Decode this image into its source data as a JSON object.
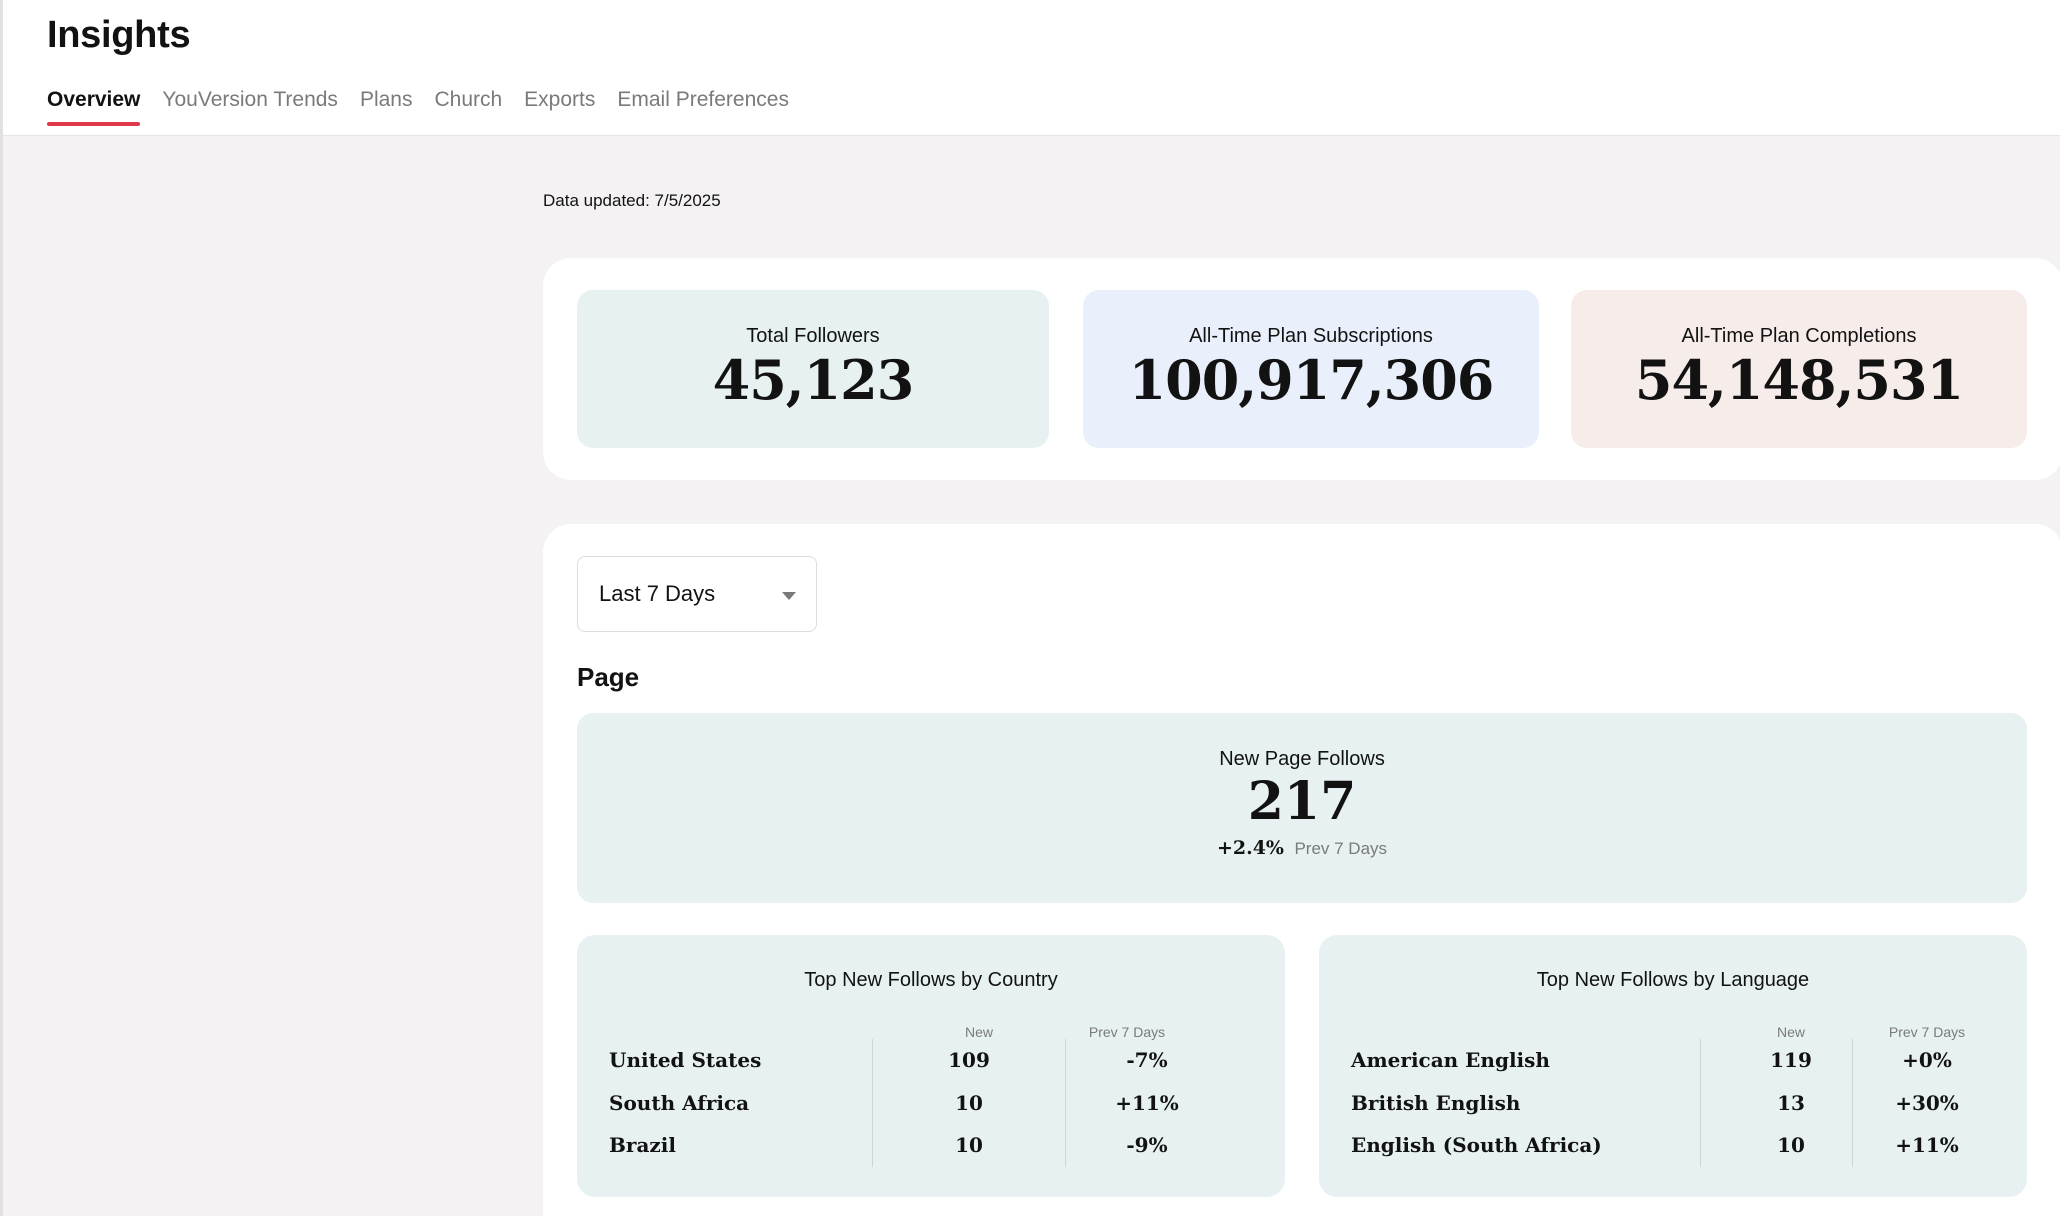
{
  "header": {
    "title": "Insights",
    "tabs": [
      {
        "label": "Overview",
        "active": true
      },
      {
        "label": "YouVersion Trends",
        "active": false
      },
      {
        "label": "Plans",
        "active": false
      },
      {
        "label": "Church",
        "active": false
      },
      {
        "label": "Exports",
        "active": false
      },
      {
        "label": "Email Preferences",
        "active": false
      }
    ]
  },
  "data_updated": "Data updated: 7/5/2025",
  "summary": {
    "total_followers": {
      "label": "Total Followers",
      "value": "45,123"
    },
    "plan_subscriptions": {
      "label": "All-Time Plan Subscriptions",
      "value": "100,917,306"
    },
    "plan_completions": {
      "label": "All-Time Plan Completions",
      "value": "54,148,531"
    }
  },
  "filters": {
    "range": {
      "selected": "Last 7 Days"
    }
  },
  "page_section": {
    "title": "Page",
    "new_page_follows": {
      "label": "New Page Follows",
      "value": "217",
      "change": "+2.4%",
      "change_label": "Prev 7 Days"
    },
    "top_country": {
      "title": "Top New Follows by Country",
      "col_new": "New",
      "col_prev": "Prev 7 Days",
      "rows": [
        {
          "name": "United States",
          "new": "109",
          "prev": "-7%"
        },
        {
          "name": "South Africa",
          "new": "10",
          "prev": "+11%"
        },
        {
          "name": "Brazil",
          "new": "10",
          "prev": "-9%"
        }
      ]
    },
    "top_language": {
      "title": "Top New Follows by Language",
      "col_new": "New",
      "col_prev": "Prev 7 Days",
      "rows": [
        {
          "name": "American English",
          "new": "119",
          "prev": "+0%"
        },
        {
          "name": "British English",
          "new": "13",
          "prev": "+30%"
        },
        {
          "name": "English (South Africa)",
          "new": "10",
          "prev": "+11%"
        }
      ]
    }
  },
  "colors": {
    "accent": "#e0394a",
    "followers_bg": "#e8f1f1",
    "subscriptions_bg": "#e9f0fb",
    "completions_bg": "#f6ece9"
  },
  "icons": {
    "select_caret": "chevron-down-icon"
  }
}
